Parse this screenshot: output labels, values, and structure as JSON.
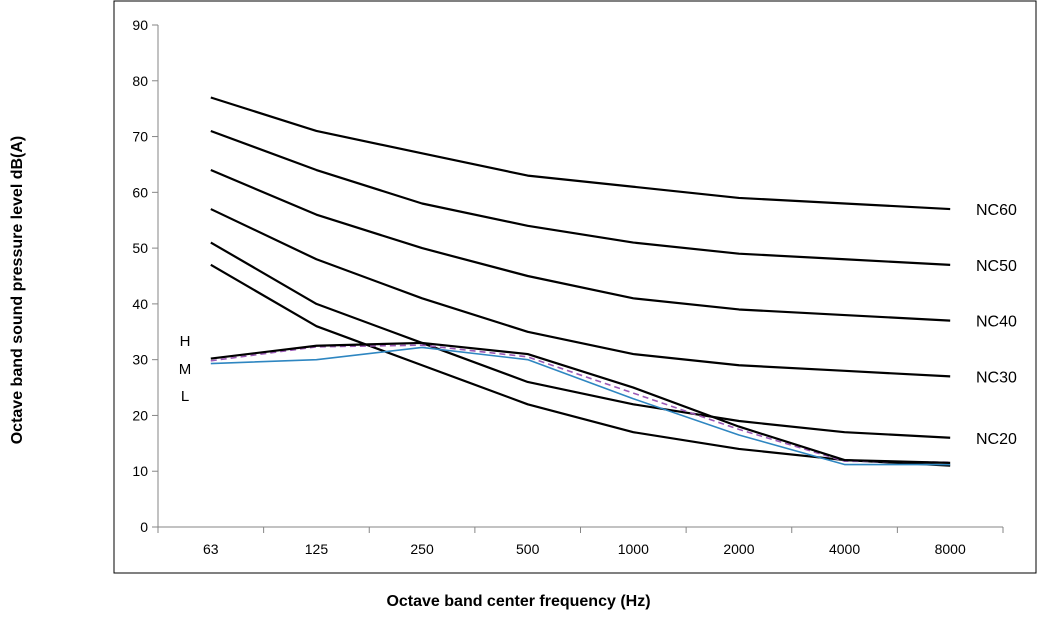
{
  "chart_data": {
    "type": "line",
    "title": "",
    "xlabel": "Octave band center frequency (Hz)",
    "ylabel": "Octave band sound pressure level dB(A)",
    "categories": [
      "63",
      "125",
      "250",
      "500",
      "1000",
      "2000",
      "4000",
      "8000"
    ],
    "ylim": [
      0,
      90
    ],
    "yticks": [
      0,
      10,
      20,
      30,
      40,
      50,
      60,
      70,
      80,
      90
    ],
    "grid": false,
    "legend": "none",
    "nc_curves": [
      {
        "name": "NC60",
        "values": [
          77,
          71,
          67,
          63,
          61,
          59,
          58,
          57
        ]
      },
      {
        "name": "NC50",
        "values": [
          71,
          64,
          58,
          54,
          51,
          49,
          48,
          47
        ]
      },
      {
        "name": "NC40",
        "values": [
          64,
          56,
          50,
          45,
          41,
          39,
          38,
          37
        ]
      },
      {
        "name": "NC30",
        "values": [
          57,
          48,
          41,
          35,
          31,
          29,
          28,
          27
        ]
      },
      {
        "name": "NC20",
        "values": [
          51,
          40,
          33,
          26,
          22,
          19,
          17,
          16
        ]
      },
      {
        "name": "",
        "values": [
          47,
          36,
          29,
          22,
          17,
          14,
          12,
          11
        ]
      }
    ],
    "measured": [
      {
        "name": "H",
        "values": [
          30.2,
          32.5,
          33.0,
          31.0,
          25.0,
          18.0,
          12.0,
          11.5
        ],
        "color": "#000000",
        "style": "solid"
      },
      {
        "name": "M",
        "values": [
          29.8,
          32.3,
          32.6,
          30.5,
          24.0,
          17.5,
          11.8,
          11.6
        ],
        "color": "#9b59b6",
        "style": "dashed"
      },
      {
        "name": "L",
        "values": [
          29.3,
          30.0,
          32.2,
          30.0,
          23.0,
          16.5,
          11.2,
          11.2
        ],
        "color": "#2e86c1",
        "style": "solid"
      }
    ]
  }
}
